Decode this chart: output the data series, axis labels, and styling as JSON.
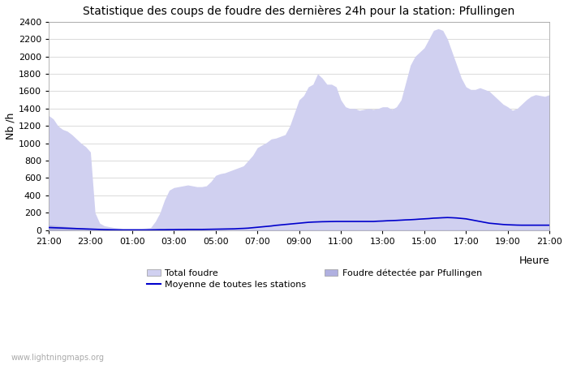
{
  "title": "Statistique des coups de foudre des dernières 24h pour la station: Pfullingen",
  "xlabel": "Heure",
  "ylabel": "Nb /h",
  "xlim": [
    0,
    24
  ],
  "ylim": [
    0,
    2400
  ],
  "yticks": [
    0,
    200,
    400,
    600,
    800,
    1000,
    1200,
    1400,
    1600,
    1800,
    2000,
    2200,
    2400
  ],
  "xtick_labels": [
    "21:00",
    "23:00",
    "01:00",
    "03:00",
    "05:00",
    "07:00",
    "09:00",
    "11:00",
    "13:00",
    "15:00",
    "17:00",
    "19:00",
    "21:00"
  ],
  "xtick_positions": [
    0,
    2,
    4,
    6,
    8,
    10,
    12,
    14,
    16,
    18,
    20,
    22,
    24
  ],
  "background_color": "#ffffff",
  "fill_color_total": "#d0d0f0",
  "fill_color_pfullingen": "#b0b0e0",
  "line_color_moyenne": "#0000cc",
  "watermark": "www.lightningmaps.org",
  "total_foudre": [
    1320,
    1280,
    1200,
    1160,
    1140,
    1100,
    1050,
    1000,
    960,
    900,
    200,
    80,
    50,
    40,
    30,
    25,
    20,
    20,
    20,
    20,
    20,
    25,
    30,
    100,
    200,
    350,
    460,
    490,
    500,
    510,
    520,
    510,
    500,
    500,
    510,
    560,
    630,
    650,
    660,
    680,
    700,
    720,
    740,
    800,
    860,
    950,
    980,
    1010,
    1050,
    1060,
    1080,
    1100,
    1200,
    1350,
    1500,
    1550,
    1650,
    1680,
    1800,
    1750,
    1680,
    1680,
    1650,
    1500,
    1420,
    1400,
    1400,
    1380,
    1390,
    1400,
    1390,
    1400,
    1420,
    1420,
    1390,
    1420,
    1500,
    1700,
    1900,
    2000,
    2050,
    2100,
    2200,
    2300,
    2320,
    2300,
    2200,
    2050,
    1900,
    1750,
    1650,
    1620,
    1620,
    1640,
    1620,
    1600,
    1550,
    1500,
    1450,
    1420,
    1380,
    1400,
    1450,
    1500,
    1540,
    1560,
    1550,
    1540,
    1560
  ],
  "foudre_pfullingen": [
    60,
    55,
    50,
    45,
    40,
    35,
    30,
    25,
    20,
    15,
    10,
    8,
    6,
    5,
    4,
    3,
    2,
    2,
    2,
    2,
    2,
    2,
    2,
    3,
    4,
    4,
    5,
    5,
    5,
    5,
    5,
    5,
    5,
    5,
    5,
    5,
    5,
    5,
    5,
    5,
    5,
    5,
    5,
    5,
    5,
    5,
    5,
    5,
    5,
    5,
    5,
    5,
    5,
    5,
    5,
    5,
    5,
    5,
    5,
    5,
    5,
    5,
    5,
    5,
    5,
    5,
    5,
    5,
    5,
    5,
    5,
    5,
    5,
    5,
    5,
    5,
    5,
    5,
    5,
    5,
    5,
    5,
    5,
    5,
    5,
    5,
    5,
    5,
    5,
    5,
    5,
    5,
    5,
    5,
    5,
    5,
    5,
    5,
    5,
    5,
    5,
    5,
    5,
    5,
    5,
    5,
    5,
    5,
    5
  ],
  "moyenne": [
    30,
    28,
    26,
    24,
    22,
    20,
    18,
    16,
    14,
    12,
    10,
    8,
    6,
    5,
    4,
    3,
    2,
    2,
    2,
    2,
    2,
    2,
    3,
    4,
    5,
    5,
    6,
    6,
    7,
    7,
    8,
    8,
    8,
    8,
    9,
    10,
    11,
    12,
    13,
    14,
    15,
    18,
    20,
    23,
    28,
    33,
    38,
    43,
    48,
    55,
    60,
    65,
    70,
    75,
    80,
    85,
    90,
    93,
    95,
    97,
    98,
    99,
    100,
    100,
    100,
    100,
    100,
    100,
    100,
    100,
    100,
    103,
    105,
    108,
    110,
    112,
    115,
    118,
    120,
    123,
    127,
    130,
    133,
    138,
    140,
    143,
    145,
    143,
    140,
    135,
    130,
    120,
    110,
    100,
    90,
    80,
    75,
    70,
    65,
    62,
    60,
    58,
    57,
    57,
    57,
    57,
    57,
    57,
    57
  ]
}
